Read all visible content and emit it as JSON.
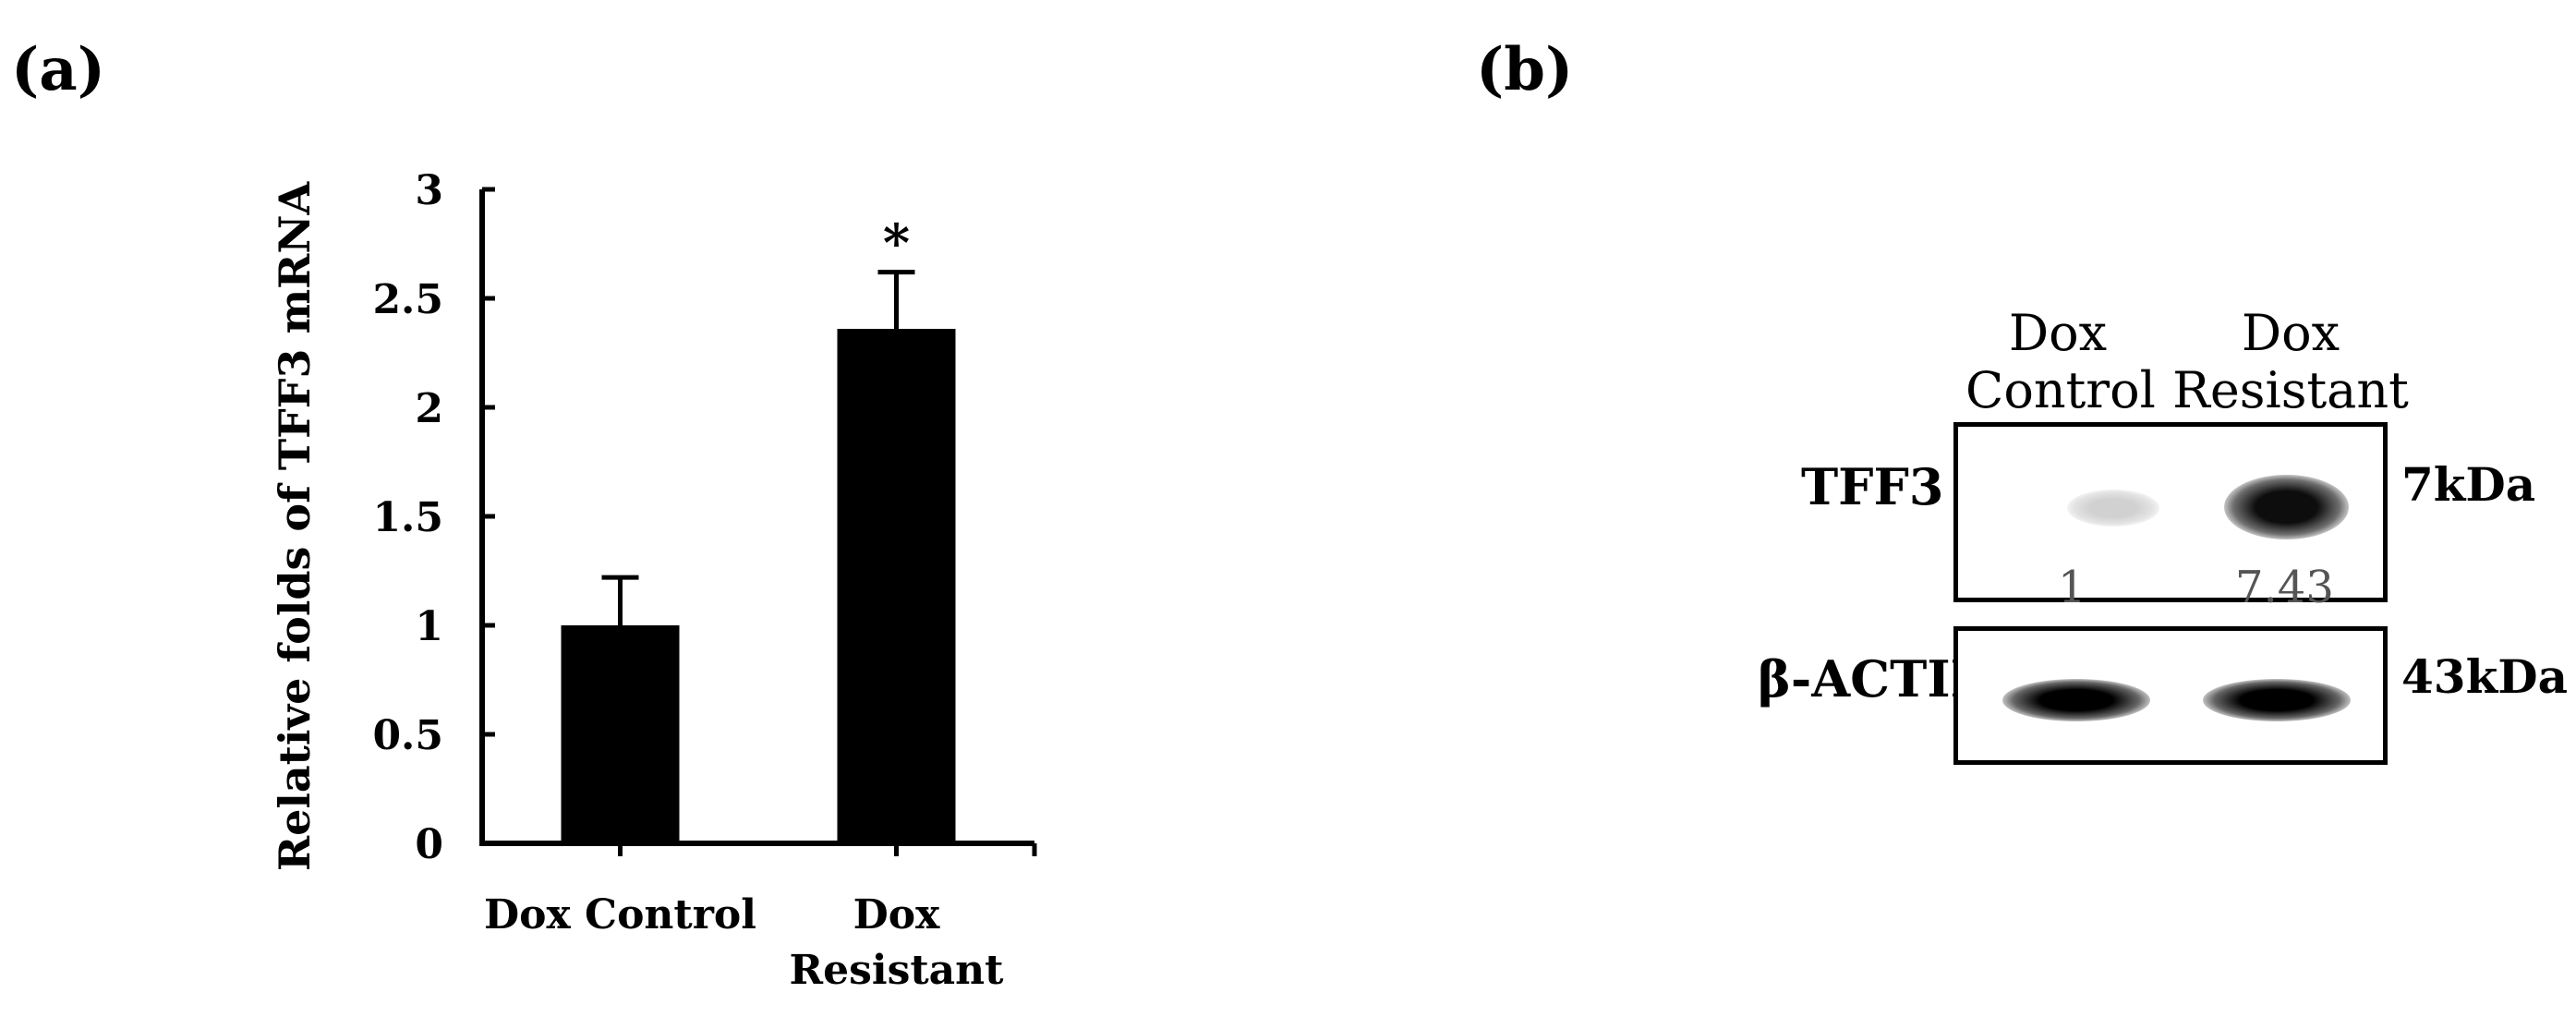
{
  "panels": {
    "a_label": "(a)",
    "b_label": "(b)"
  },
  "chart_data": {
    "type": "bar",
    "categories": [
      "Dox Control",
      "Dox Resistant"
    ],
    "categories_display": [
      [
        "Dox Control"
      ],
      [
        "Dox",
        "Resistant"
      ]
    ],
    "values": [
      1.0,
      2.36
    ],
    "errors": [
      0.22,
      0.26
    ],
    "ylabel": "Relative folds of TFF3 mRNA",
    "ylim": [
      0,
      3
    ],
    "yticks": [
      0,
      0.5,
      1,
      1.5,
      2,
      2.5,
      3
    ],
    "ytick_labels": [
      "0",
      "0.5",
      "1",
      "1.5",
      "2",
      "2.5",
      "3"
    ],
    "significance": [
      "",
      "*"
    ],
    "bar_color": "#000000",
    "grid": false
  },
  "blot": {
    "lanes": [
      {
        "line1": "Dox",
        "line2": "Control"
      },
      {
        "line1": "Dox",
        "line2": "Resistant"
      }
    ],
    "rows": [
      {
        "label": "TFF3",
        "size": "7kDa",
        "intensities": [
          0.18,
          0.95
        ]
      },
      {
        "label": "β-ACTIN",
        "size": "43kDa",
        "intensities": [
          1.0,
          1.0
        ]
      }
    ],
    "quantification": [
      "1",
      "7.43"
    ]
  }
}
